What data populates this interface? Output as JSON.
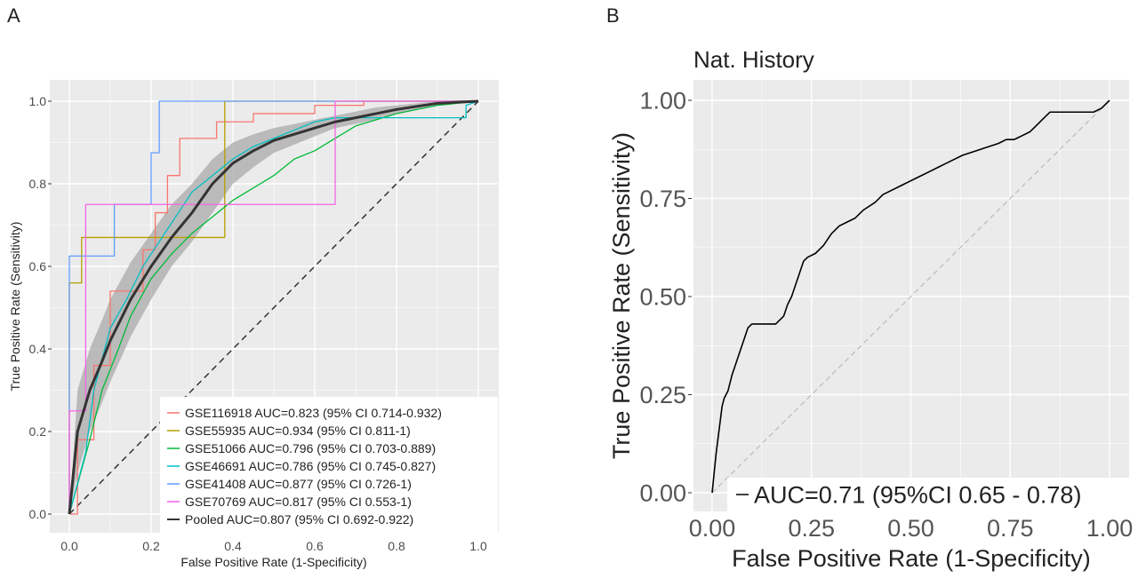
{
  "chart_data": [
    {
      "panel_label": "A",
      "type": "line",
      "title": "",
      "xlabel": "False Positive Rate (1-Specificity)",
      "ylabel": "True Positive Rate (Sensitivity)",
      "xlim": [
        0,
        1
      ],
      "ylim": [
        0,
        1
      ],
      "xticks": [
        "0.0",
        "0.2",
        "0.4",
        "0.6",
        "0.8",
        "1.0"
      ],
      "yticks": [
        "0.0",
        "0.2",
        "0.4",
        "0.6",
        "0.8",
        "1.0"
      ],
      "grid": true,
      "legend_position": "bottom-right",
      "diagonal": true,
      "series": [
        {
          "name": "GSE116918 AUC=0.823 (95% CI 0.714-0.932)",
          "color": "#F8766D",
          "x": [
            0,
            0.02,
            0.02,
            0.06,
            0.06,
            0.1,
            0.1,
            0.18,
            0.18,
            0.21,
            0.21,
            0.24,
            0.24,
            0.27,
            0.27,
            0.36,
            0.36,
            0.45,
            0.45,
            0.6,
            0.6,
            0.72,
            0.72,
            1.0
          ],
          "y": [
            0,
            0,
            0.18,
            0.18,
            0.36,
            0.36,
            0.54,
            0.54,
            0.64,
            0.64,
            0.73,
            0.73,
            0.82,
            0.82,
            0.91,
            0.91,
            0.95,
            0.95,
            0.97,
            0.97,
            0.99,
            0.99,
            1.0,
            1.0
          ]
        },
        {
          "name": "GSE55935 AUC=0.934 (95% CI 0.811-1)",
          "color": "#B79F00",
          "x": [
            0,
            0,
            0.03,
            0.03,
            0.38,
            0.38,
            0.38,
            1.0
          ],
          "y": [
            0,
            0.56,
            0.56,
            0.67,
            0.67,
            0.89,
            1.0,
            1.0
          ]
        },
        {
          "name": "GSE51066 AUC=0.796 (95% CI 0.703-0.889)",
          "color": "#00BA38",
          "x": [
            0,
            0.05,
            0.08,
            0.12,
            0.15,
            0.2,
            0.25,
            0.3,
            0.35,
            0.4,
            0.45,
            0.5,
            0.55,
            0.6,
            0.65,
            0.7,
            0.8,
            0.9,
            1.0
          ],
          "y": [
            0,
            0.18,
            0.3,
            0.4,
            0.48,
            0.57,
            0.63,
            0.68,
            0.72,
            0.76,
            0.79,
            0.82,
            0.86,
            0.88,
            0.91,
            0.94,
            0.97,
            0.99,
            1.0
          ]
        },
        {
          "name": "GSE46691 AUC=0.786 (95% CI 0.745-0.827)",
          "color": "#00BFC4",
          "x": [
            0,
            0.04,
            0.06,
            0.1,
            0.14,
            0.18,
            0.22,
            0.26,
            0.3,
            0.35,
            0.4,
            0.45,
            0.5,
            0.55,
            0.6,
            0.65,
            0.7,
            0.8,
            0.85,
            0.97,
            0.97,
            1.0
          ],
          "y": [
            0,
            0.15,
            0.3,
            0.45,
            0.52,
            0.6,
            0.66,
            0.72,
            0.78,
            0.82,
            0.86,
            0.89,
            0.91,
            0.93,
            0.95,
            0.96,
            0.96,
            0.96,
            0.96,
            0.96,
            0.99,
            1.0
          ]
        },
        {
          "name": "GSE41408 AUC=0.877 (95% CI 0.726-1)",
          "color": "#619CFF",
          "x": [
            0,
            0,
            0.06,
            0.06,
            0.11,
            0.11,
            0.2,
            0.2,
            0.22,
            0.22,
            1.0
          ],
          "y": [
            0,
            0.625,
            0.625,
            0.625,
            0.625,
            0.75,
            0.75,
            0.875,
            0.875,
            1.0,
            1.0
          ]
        },
        {
          "name": "GSE70769 AUC=0.817 (95% CI 0.553-1)",
          "color": "#F564E3",
          "x": [
            0,
            0,
            0.04,
            0.04,
            0.65,
            0.65,
            1.0
          ],
          "y": [
            0,
            0.25,
            0.25,
            0.75,
            0.75,
            1.0,
            1.0
          ]
        },
        {
          "name": "Pooled AUC=0.807 (95% CI 0.692-0.922)",
          "color": "#333333",
          "x": [
            0,
            0.02,
            0.05,
            0.08,
            0.1,
            0.15,
            0.2,
            0.25,
            0.3,
            0.35,
            0.4,
            0.45,
            0.5,
            0.55,
            0.6,
            0.65,
            0.7,
            0.75,
            0.8,
            0.9,
            1.0
          ],
          "y": [
            0,
            0.2,
            0.3,
            0.37,
            0.42,
            0.52,
            0.6,
            0.67,
            0.73,
            0.8,
            0.85,
            0.88,
            0.905,
            0.92,
            0.935,
            0.95,
            0.96,
            0.97,
            0.98,
            0.995,
            1.0
          ],
          "ci_lower": [
            0,
            0.1,
            0.2,
            0.27,
            0.32,
            0.43,
            0.52,
            0.6,
            0.66,
            0.73,
            0.8,
            0.84,
            0.875,
            0.895,
            0.915,
            0.935,
            0.945,
            0.955,
            0.97,
            0.99,
            1.0
          ],
          "ci_upper": [
            0,
            0.3,
            0.4,
            0.47,
            0.52,
            0.61,
            0.68,
            0.75,
            0.8,
            0.86,
            0.9,
            0.92,
            0.935,
            0.945,
            0.955,
            0.965,
            0.975,
            0.985,
            0.99,
            1.0,
            1.0
          ]
        }
      ]
    },
    {
      "panel_label": "B",
      "type": "line",
      "title": "Nat. History",
      "xlabel": "False Positive Rate (1-Specificity)",
      "ylabel": "True Positive Rate (Sensitivity)",
      "xlim": [
        0,
        1
      ],
      "ylim": [
        0,
        1
      ],
      "xticks": [
        "0.00",
        "0.25",
        "0.50",
        "0.75",
        "1.00"
      ],
      "yticks": [
        "0.00",
        "0.25",
        "0.50",
        "0.75",
        "1.00"
      ],
      "grid": true,
      "legend_position": "bottom-right",
      "diagonal": true,
      "series": [
        {
          "name": "AUC=0.71 (95%CI 0.65 - 0.78)",
          "color": "#000000",
          "x": [
            0,
            0.005,
            0.01,
            0.015,
            0.02,
            0.025,
            0.03,
            0.04,
            0.05,
            0.06,
            0.07,
            0.08,
            0.09,
            0.1,
            0.11,
            0.13,
            0.16,
            0.18,
            0.19,
            0.2,
            0.21,
            0.22,
            0.23,
            0.24,
            0.26,
            0.28,
            0.3,
            0.32,
            0.34,
            0.36,
            0.38,
            0.41,
            0.43,
            0.45,
            0.47,
            0.49,
            0.51,
            0.53,
            0.55,
            0.57,
            0.59,
            0.61,
            0.63,
            0.66,
            0.69,
            0.72,
            0.74,
            0.76,
            0.78,
            0.8,
            0.81,
            0.82,
            0.83,
            0.84,
            0.85,
            0.86,
            0.87,
            0.88,
            0.9,
            0.93,
            0.96,
            0.98,
            0.99,
            1.0
          ],
          "y": [
            0,
            0.05,
            0.1,
            0.14,
            0.18,
            0.22,
            0.24,
            0.26,
            0.3,
            0.33,
            0.36,
            0.39,
            0.42,
            0.43,
            0.43,
            0.43,
            0.43,
            0.45,
            0.48,
            0.5,
            0.53,
            0.56,
            0.59,
            0.6,
            0.61,
            0.63,
            0.66,
            0.68,
            0.69,
            0.7,
            0.72,
            0.74,
            0.76,
            0.77,
            0.78,
            0.79,
            0.8,
            0.81,
            0.82,
            0.83,
            0.84,
            0.85,
            0.86,
            0.87,
            0.88,
            0.89,
            0.9,
            0.9,
            0.91,
            0.92,
            0.93,
            0.94,
            0.95,
            0.96,
            0.97,
            0.97,
            0.97,
            0.97,
            0.97,
            0.97,
            0.97,
            0.98,
            0.99,
            1.0
          ]
        }
      ]
    }
  ]
}
